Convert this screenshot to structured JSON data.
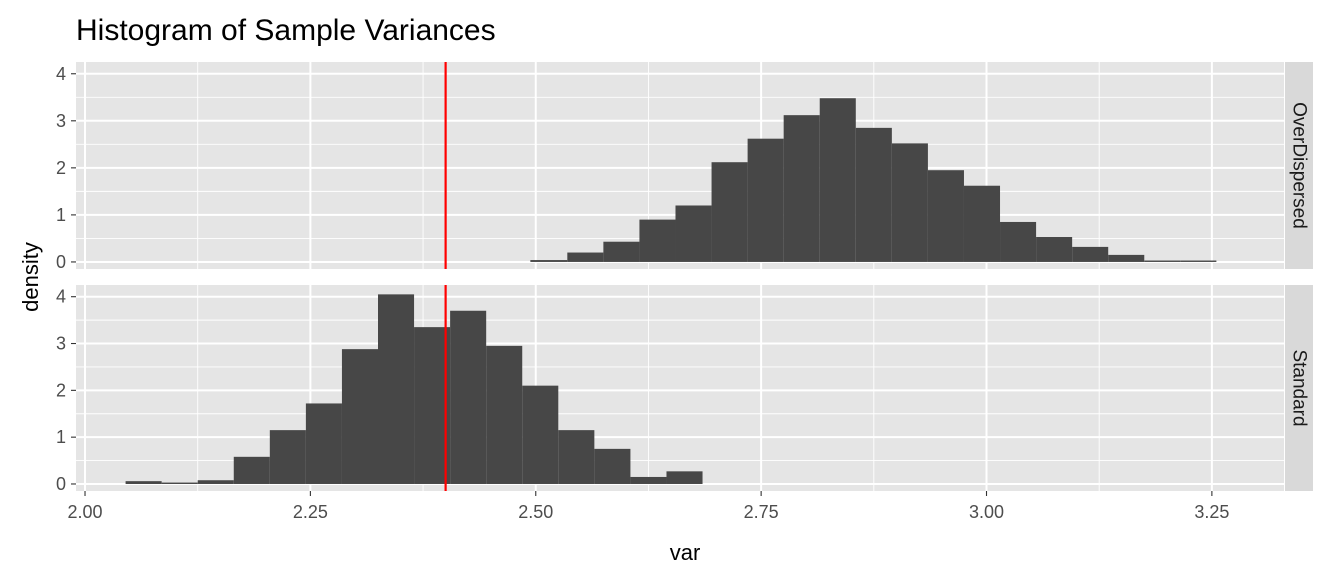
{
  "chart_data": {
    "type": "bar",
    "title": "Histogram of Sample Variances",
    "xlabel": "var",
    "ylabel": "density",
    "xlim": [
      1.99,
      3.33
    ],
    "x_ticks": [
      "2.00",
      "2.25",
      "2.50",
      "2.75",
      "3.00",
      "3.25"
    ],
    "y_ticks": [
      "0",
      "1",
      "2",
      "3",
      "4"
    ],
    "ylim": [
      -0.15,
      4.25
    ],
    "reference_line": {
      "x": 2.4,
      "color": "#ff0000"
    },
    "bar_color": "#474747",
    "panel_background": "#e5e5e5",
    "strip_background": "#d9d9d9",
    "grid": true,
    "panels": [
      {
        "strip_label": "OverDispersed",
        "bins": [
          {
            "x0": 2.494,
            "x1": 2.535,
            "density": 0.04
          },
          {
            "x0": 2.535,
            "x1": 2.575,
            "density": 0.2
          },
          {
            "x0": 2.575,
            "x1": 2.615,
            "density": 0.43
          },
          {
            "x0": 2.615,
            "x1": 2.655,
            "density": 0.9
          },
          {
            "x0": 2.655,
            "x1": 2.695,
            "density": 1.2
          },
          {
            "x0": 2.695,
            "x1": 2.735,
            "density": 2.12
          },
          {
            "x0": 2.735,
            "x1": 2.775,
            "density": 2.62
          },
          {
            "x0": 2.775,
            "x1": 2.815,
            "density": 3.12
          },
          {
            "x0": 2.815,
            "x1": 2.855,
            "density": 3.48
          },
          {
            "x0": 2.855,
            "x1": 2.895,
            "density": 2.85
          },
          {
            "x0": 2.895,
            "x1": 2.935,
            "density": 2.52
          },
          {
            "x0": 2.935,
            "x1": 2.975,
            "density": 1.95
          },
          {
            "x0": 2.975,
            "x1": 3.015,
            "density": 1.62
          },
          {
            "x0": 3.015,
            "x1": 3.055,
            "density": 0.85
          },
          {
            "x0": 3.055,
            "x1": 3.095,
            "density": 0.53
          },
          {
            "x0": 3.095,
            "x1": 3.135,
            "density": 0.32
          },
          {
            "x0": 3.135,
            "x1": 3.175,
            "density": 0.15
          },
          {
            "x0": 3.175,
            "x1": 3.215,
            "density": 0.03
          },
          {
            "x0": 3.215,
            "x1": 3.255,
            "density": 0.03
          }
        ]
      },
      {
        "strip_label": "Standard",
        "bins": [
          {
            "x0": 2.045,
            "x1": 2.085,
            "density": 0.06
          },
          {
            "x0": 2.085,
            "x1": 2.125,
            "density": 0.03
          },
          {
            "x0": 2.125,
            "x1": 2.165,
            "density": 0.08
          },
          {
            "x0": 2.165,
            "x1": 2.205,
            "density": 0.58
          },
          {
            "x0": 2.205,
            "x1": 2.245,
            "density": 1.15
          },
          {
            "x0": 2.245,
            "x1": 2.285,
            "density": 1.72
          },
          {
            "x0": 2.285,
            "x1": 2.325,
            "density": 2.88
          },
          {
            "x0": 2.325,
            "x1": 2.365,
            "density": 4.05
          },
          {
            "x0": 2.365,
            "x1": 2.405,
            "density": 3.35
          },
          {
            "x0": 2.405,
            "x1": 2.445,
            "density": 3.7
          },
          {
            "x0": 2.445,
            "x1": 2.485,
            "density": 2.95
          },
          {
            "x0": 2.485,
            "x1": 2.525,
            "density": 2.1
          },
          {
            "x0": 2.525,
            "x1": 2.565,
            "density": 1.15
          },
          {
            "x0": 2.565,
            "x1": 2.605,
            "density": 0.75
          },
          {
            "x0": 2.605,
            "x1": 2.645,
            "density": 0.15
          },
          {
            "x0": 2.645,
            "x1": 2.685,
            "density": 0.27
          }
        ]
      }
    ]
  }
}
